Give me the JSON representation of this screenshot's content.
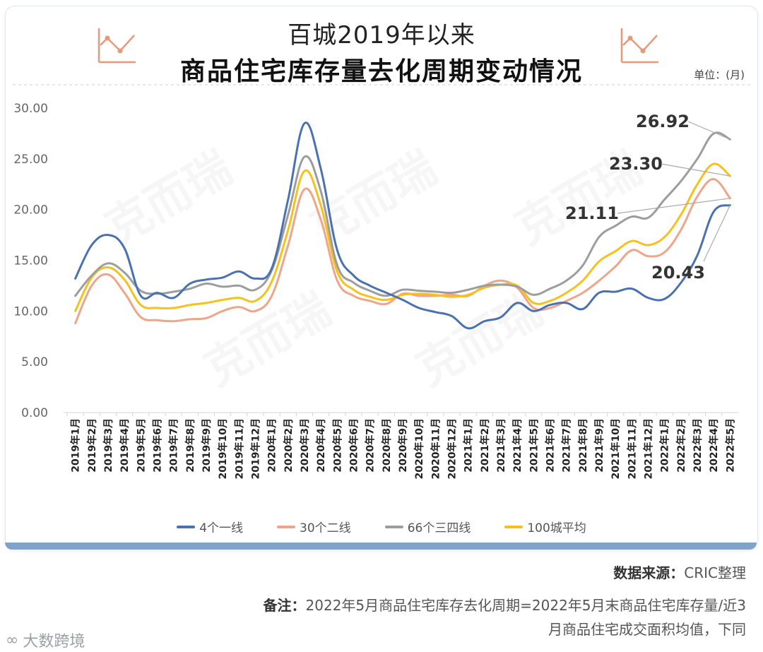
{
  "header": {
    "title_line1": "百城2019年以来",
    "title_line2": "商品住宅库存量去化周期变动情况",
    "unit": "单位：(月)"
  },
  "footer": {
    "source_label": "数据来源：",
    "source_value": "CRIC整理",
    "note_label": "备注：",
    "note_value": "2022年5月商品住宅库存去化周期=2022年5月末商品住宅库存量/近3月商品住宅成交面积均值，下同"
  },
  "brand": {
    "name": "大数跨境",
    "logo_text": "∞"
  },
  "watermark": {
    "text": "克而瑞"
  },
  "chart_data": {
    "type": "line",
    "ylim": [
      0,
      30
    ],
    "yticks": [
      "0.00",
      "5.00",
      "10.00",
      "15.00",
      "20.00",
      "25.00",
      "30.00"
    ],
    "categories": [
      "2019年1月",
      "2019年2月",
      "2019年3月",
      "2019年4月",
      "2019年5月",
      "2019年6月",
      "2019年7月",
      "2019年8月",
      "2019年9月",
      "2019年10月",
      "2019年11月",
      "2019年12月",
      "2020年1月",
      "2020年2月",
      "2020年3月",
      "2020年4月",
      "2020年5月",
      "2020年6月",
      "2020年7月",
      "2020年8月",
      "2020年9月",
      "2020年10月",
      "2020年11月",
      "2020年12月",
      "2021年1月",
      "2021年2月",
      "2021年3月",
      "2021年4月",
      "2021年5月",
      "2021年6月",
      "2021年7月",
      "2021年8月",
      "2021年9月",
      "2021年10月",
      "2021年11月",
      "2021年12月",
      "2022年1月",
      "2022年2月",
      "2022年3月",
      "2022年4月",
      "2022年5月"
    ],
    "series": [
      {
        "name": "4个一线",
        "color": "#4a72b0",
        "values": [
          13.2,
          16.5,
          17.5,
          16.2,
          11.5,
          11.8,
          11.3,
          12.7,
          13.1,
          13.3,
          13.9,
          13.2,
          14.2,
          21.0,
          28.5,
          24.0,
          16.0,
          13.5,
          12.5,
          11.8,
          11.1,
          10.3,
          9.9,
          9.5,
          8.3,
          9.0,
          9.4,
          10.8,
          10.0,
          10.6,
          10.8,
          10.2,
          11.8,
          11.9,
          12.2,
          11.3,
          11.2,
          12.8,
          15.5,
          19.8,
          20.43
        ]
      },
      {
        "name": "30个二线",
        "color": "#eda689",
        "values": [
          8.8,
          12.5,
          13.6,
          11.8,
          9.4,
          9.1,
          9.0,
          9.2,
          9.3,
          10.0,
          10.4,
          10.0,
          11.5,
          16.5,
          22.0,
          19.0,
          13.0,
          11.5,
          11.0,
          10.7,
          11.7,
          11.5,
          11.5,
          11.6,
          11.5,
          12.5,
          13.0,
          12.3,
          10.3,
          10.3,
          11.0,
          11.8,
          13.0,
          14.4,
          16.0,
          15.4,
          15.8,
          18.0,
          21.3,
          23.0,
          21.11
        ]
      },
      {
        "name": "66个三四线",
        "color": "#9d9d9d",
        "values": [
          11.5,
          13.5,
          14.7,
          13.8,
          12.0,
          11.7,
          11.9,
          12.2,
          12.7,
          12.4,
          12.5,
          12.1,
          14.0,
          19.5,
          25.2,
          21.8,
          14.5,
          12.8,
          12.0,
          11.5,
          12.1,
          12.0,
          11.9,
          11.8,
          12.1,
          12.5,
          12.6,
          12.4,
          11.6,
          12.2,
          13.0,
          14.5,
          17.3,
          18.4,
          19.3,
          19.2,
          21.0,
          22.8,
          25.0,
          27.5,
          26.92
        ]
      },
      {
        "name": "100城平均",
        "color": "#f5c21d",
        "values": [
          10.0,
          13.3,
          14.3,
          13.1,
          10.6,
          10.3,
          10.3,
          10.6,
          10.8,
          11.1,
          11.3,
          11.0,
          12.9,
          18.0,
          23.8,
          20.4,
          13.9,
          12.1,
          11.4,
          11.1,
          11.6,
          11.7,
          11.6,
          11.4,
          11.6,
          12.3,
          12.6,
          12.5,
          10.8,
          11.0,
          11.8,
          13.0,
          14.9,
          15.9,
          16.9,
          16.5,
          17.3,
          19.5,
          22.5,
          24.5,
          23.3
        ]
      }
    ],
    "annotations": [
      {
        "series": "66个三四线",
        "label": "26.92"
      },
      {
        "series": "100城平均",
        "label": "23.30"
      },
      {
        "series": "30个二线",
        "label": "21.11"
      },
      {
        "series": "4个一线",
        "label": "20.43"
      }
    ],
    "legend_position": "bottom"
  }
}
